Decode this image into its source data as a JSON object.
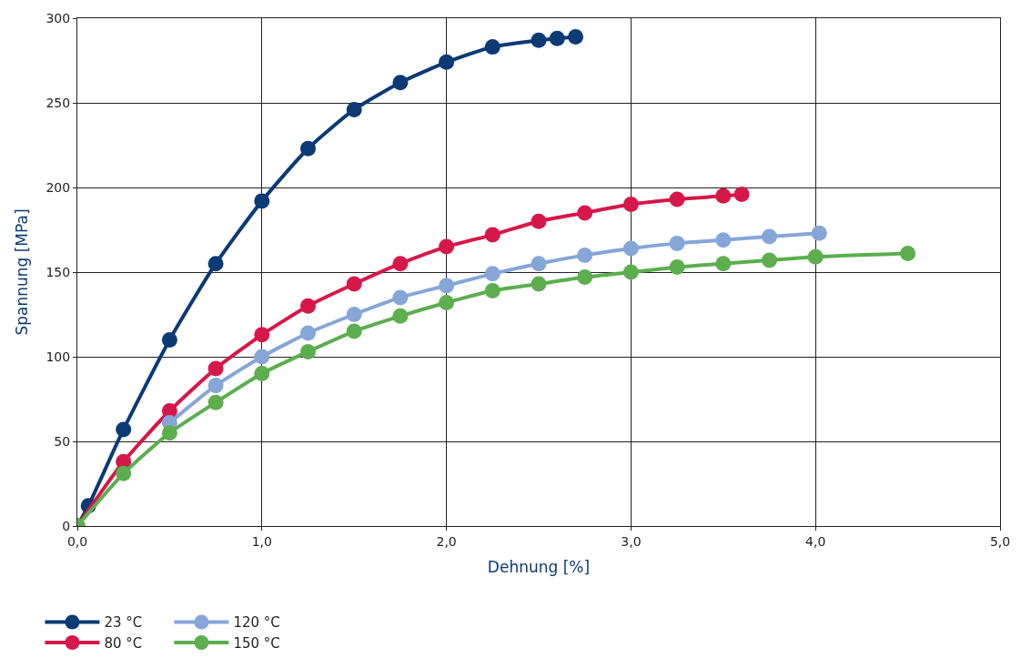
{
  "chart_data": {
    "type": "line",
    "xlabel": "Dehnung [%]",
    "ylabel": "Spannung [MPa]",
    "xlim": [
      0,
      5
    ],
    "ylim": [
      0,
      300
    ],
    "xticks": [
      {
        "value": 0,
        "label": "0,0"
      },
      {
        "value": 1,
        "label": "1,0"
      },
      {
        "value": 2,
        "label": "2,0"
      },
      {
        "value": 3,
        "label": "3,0"
      },
      {
        "value": 4,
        "label": "4,0"
      },
      {
        "value": 5,
        "label": "5,0"
      }
    ],
    "yticks": [
      0,
      50,
      100,
      150,
      200,
      250,
      300
    ],
    "grid": true,
    "legend": "bottom left",
    "marker": "circle",
    "line_style": "solid",
    "series": [
      {
        "name": "23 °C",
        "color": "#0b3a75",
        "x": [
          0,
          0.06,
          0.25,
          0.5,
          0.75,
          1.0,
          1.25,
          1.5,
          1.75,
          2.0,
          2.25,
          2.5,
          2.6,
          2.7
        ],
        "values": [
          0,
          12,
          57,
          110,
          155,
          192,
          223,
          246,
          262,
          274,
          283,
          287,
          288,
          289
        ]
      },
      {
        "name": "80 °C",
        "color": "#d6174a",
        "x": [
          0,
          0.25,
          0.5,
          0.75,
          1.0,
          1.25,
          1.5,
          1.75,
          2.0,
          2.25,
          2.5,
          2.75,
          3.0,
          3.25,
          3.5,
          3.6
        ],
        "values": [
          0,
          38,
          68,
          93,
          113,
          130,
          143,
          155,
          165,
          172,
          180,
          185,
          190,
          193,
          195,
          196
        ]
      },
      {
        "name": "120 °C",
        "color": "#86a6d8",
        "x": [
          0.5,
          0.75,
          1.0,
          1.25,
          1.5,
          1.75,
          2.0,
          2.25,
          2.5,
          2.75,
          3.0,
          3.25,
          3.5,
          3.75,
          4.02
        ],
        "values": [
          61,
          83,
          100,
          114,
          125,
          135,
          142,
          149,
          155,
          160,
          164,
          167,
          169,
          171,
          173
        ]
      },
      {
        "name": "150 °C",
        "color": "#5cae4f",
        "x": [
          0,
          0.25,
          0.5,
          0.75,
          1.0,
          1.25,
          1.5,
          1.75,
          2.0,
          2.25,
          2.5,
          2.75,
          3.0,
          3.25,
          3.5,
          3.75,
          4.0,
          4.5
        ],
        "values": [
          0,
          31,
          55,
          73,
          90,
          103,
          115,
          124,
          132,
          139,
          143,
          147,
          150,
          153,
          155,
          157,
          159,
          161
        ]
      }
    ]
  }
}
